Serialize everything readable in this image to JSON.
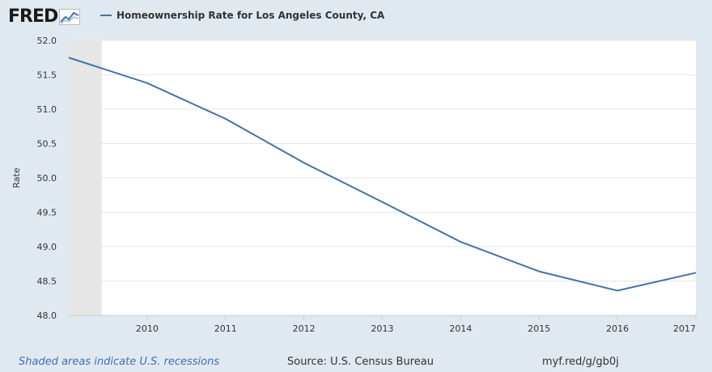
{
  "header": {
    "logo_text": "FRED",
    "logo_icon": "line-graph-icon"
  },
  "colors": {
    "series": "#4572a7",
    "recession": "#e6e6e6",
    "plot_bg": "#ffffff",
    "page_bg": "#e1e9f0",
    "grid": "#e6e6e6"
  },
  "chart_data": {
    "type": "line",
    "title": "",
    "xlabel": "",
    "ylabel": "Rate",
    "ylim": [
      48.0,
      52.0
    ],
    "yticks": [
      "48.0",
      "48.5",
      "49.0",
      "49.5",
      "50.0",
      "50.5",
      "51.0",
      "51.5",
      "52.0"
    ],
    "xlim": [
      2009.0,
      2017.0
    ],
    "xticks": [
      "2010",
      "2011",
      "2012",
      "2013",
      "2014",
      "2015",
      "2016",
      "2017"
    ],
    "grid": true,
    "legend": "top-left",
    "recessions": [
      [
        2009.0,
        2009.42
      ]
    ],
    "series": [
      {
        "name": "Homeownership Rate for Los Angeles County, CA",
        "x": [
          2009,
          2010,
          2011,
          2012,
          2013,
          2014,
          2015,
          2016,
          2017
        ],
        "values": [
          51.75,
          51.38,
          50.86,
          50.22,
          49.65,
          49.07,
          48.64,
          48.36,
          48.62
        ]
      }
    ]
  },
  "footer": {
    "recession_note": "Shaded areas indicate U.S. recessions",
    "source": "Source: U.S. Census Bureau",
    "link": "myf.red/g/gb0j"
  }
}
